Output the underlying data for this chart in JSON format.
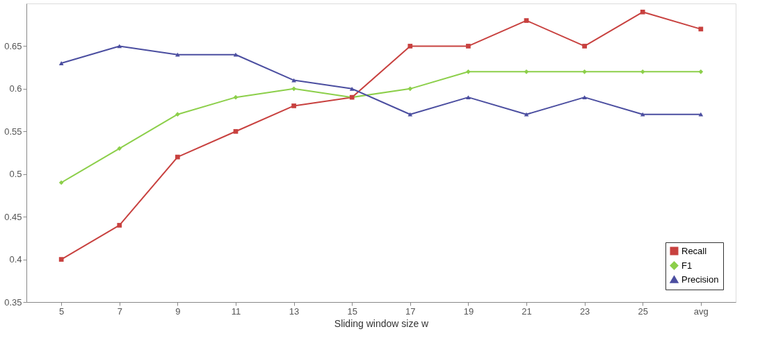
{
  "chart_data": {
    "type": "line",
    "xlabel": "Sliding window size w",
    "categories": [
      "5",
      "7",
      "9",
      "11",
      "13",
      "15",
      "17",
      "19",
      "21",
      "23",
      "25",
      "avg"
    ],
    "series": [
      {
        "name": "Recall",
        "color": "#c8413f",
        "marker": "square",
        "values": [
          0.4,
          0.44,
          0.52,
          0.55,
          0.58,
          0.59,
          0.65,
          0.65,
          0.68,
          0.65,
          0.69,
          0.67
        ]
      },
      {
        "name": "F1",
        "color": "#8ccf4a",
        "marker": "diamond",
        "values": [
          0.49,
          0.53,
          0.57,
          0.59,
          0.6,
          0.59,
          0.6,
          0.62,
          0.62,
          0.62,
          0.62,
          0.62
        ]
      },
      {
        "name": "Precision",
        "color": "#4b4ea0",
        "marker": "triangle",
        "values": [
          0.63,
          0.65,
          0.64,
          0.64,
          0.61,
          0.6,
          0.57,
          0.59,
          0.57,
          0.59,
          0.57,
          0.57
        ]
      }
    ],
    "ylim": [
      0.35,
      0.7
    ],
    "yticks": [
      0.35,
      0.4,
      0.45,
      0.5,
      0.55,
      0.6,
      0.65
    ],
    "grid": false,
    "legend": "bottom right",
    "line_style": "solid"
  }
}
